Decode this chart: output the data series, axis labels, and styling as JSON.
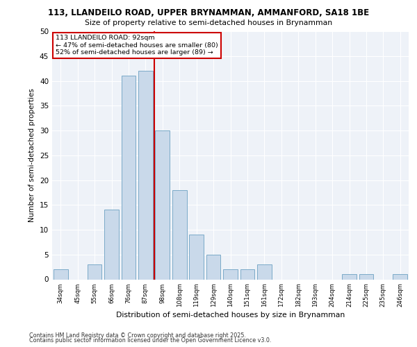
{
  "title1": "113, LLANDEILO ROAD, UPPER BRYNAMMAN, AMMANFORD, SA18 1BE",
  "title2": "Size of property relative to semi-detached houses in Brynamman",
  "xlabel": "Distribution of semi-detached houses by size in Brynamman",
  "ylabel": "Number of semi-detached properties",
  "footer1": "Contains HM Land Registry data © Crown copyright and database right 2025.",
  "footer2": "Contains public sector information licensed under the Open Government Licence v3.0.",
  "bin_labels": [
    "34sqm",
    "45sqm",
    "55sqm",
    "66sqm",
    "76sqm",
    "87sqm",
    "98sqm",
    "108sqm",
    "119sqm",
    "129sqm",
    "140sqm",
    "151sqm",
    "161sqm",
    "172sqm",
    "182sqm",
    "193sqm",
    "204sqm",
    "214sqm",
    "225sqm",
    "235sqm",
    "246sqm"
  ],
  "values": [
    2,
    0,
    3,
    14,
    41,
    42,
    30,
    18,
    9,
    5,
    2,
    2,
    3,
    0,
    0,
    0,
    0,
    1,
    1,
    0,
    1
  ],
  "bar_color": "#c9d9ea",
  "bar_edge_color": "#7aaac8",
  "property_label": "113 LLANDEILO ROAD: 92sqm",
  "pct_smaller": 47,
  "n_smaller": 80,
  "pct_larger": 52,
  "n_larger": 89,
  "vline_color": "#cc0000",
  "annotation_box_color": "#cc0000",
  "bg_color": "#eef2f8",
  "ylim": [
    0,
    50
  ],
  "yticks": [
    0,
    5,
    10,
    15,
    20,
    25,
    30,
    35,
    40,
    45,
    50
  ],
  "vline_x": 5.5
}
